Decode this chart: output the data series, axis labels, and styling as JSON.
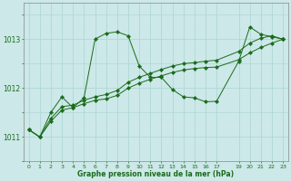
{
  "title": "Graphe pression niveau de la mer (hPa)",
  "bg_color": "#cce8e8",
  "grid_major_color": "#aad4d4",
  "grid_minor_color": "#bbdddd",
  "line_color": "#1a6b1a",
  "ylim": [
    1010.5,
    1013.75
  ],
  "yticks": [
    1011,
    1012,
    1013
  ],
  "xlim": [
    -0.5,
    23.5
  ],
  "xticks": [
    0,
    1,
    2,
    3,
    4,
    5,
    6,
    7,
    8,
    9,
    10,
    11,
    12,
    13,
    14,
    15,
    16,
    17,
    19,
    20,
    21,
    22,
    23
  ],
  "series1_x": [
    0,
    1,
    2,
    3,
    4,
    5,
    6,
    7,
    8,
    9,
    10,
    11,
    12,
    13,
    14,
    15,
    16,
    17,
    19,
    20,
    21,
    22,
    23
  ],
  "series1_y": [
    1011.15,
    1011.0,
    1011.5,
    1011.82,
    1011.6,
    1011.8,
    1013.0,
    1013.12,
    1013.15,
    1013.07,
    1012.45,
    1012.22,
    1012.22,
    1011.97,
    1011.82,
    1011.8,
    1011.72,
    1011.73,
    1012.55,
    1013.25,
    1013.1,
    1013.05,
    1013.0
  ],
  "series2_x": [
    0,
    1,
    2,
    3,
    4,
    5,
    6,
    7,
    8,
    9,
    10,
    11,
    12,
    13,
    14,
    15,
    16,
    17,
    19,
    20,
    21,
    22,
    23
  ],
  "series2_y": [
    1011.15,
    1011.0,
    1011.38,
    1011.62,
    1011.65,
    1011.75,
    1011.82,
    1011.87,
    1011.95,
    1012.12,
    1012.22,
    1012.3,
    1012.38,
    1012.45,
    1012.5,
    1012.52,
    1012.55,
    1012.57,
    1012.75,
    1012.92,
    1013.02,
    1013.07,
    1013.0
  ],
  "series3_x": [
    0,
    1,
    2,
    3,
    4,
    5,
    6,
    7,
    8,
    9,
    10,
    11,
    12,
    13,
    14,
    15,
    16,
    17,
    19,
    20,
    21,
    22,
    23
  ],
  "series3_y": [
    1011.15,
    1011.0,
    1011.32,
    1011.55,
    1011.6,
    1011.68,
    1011.75,
    1011.78,
    1011.85,
    1012.0,
    1012.1,
    1012.18,
    1012.25,
    1012.32,
    1012.37,
    1012.4,
    1012.42,
    1012.43,
    1012.58,
    1012.72,
    1012.83,
    1012.92,
    1013.0
  ]
}
